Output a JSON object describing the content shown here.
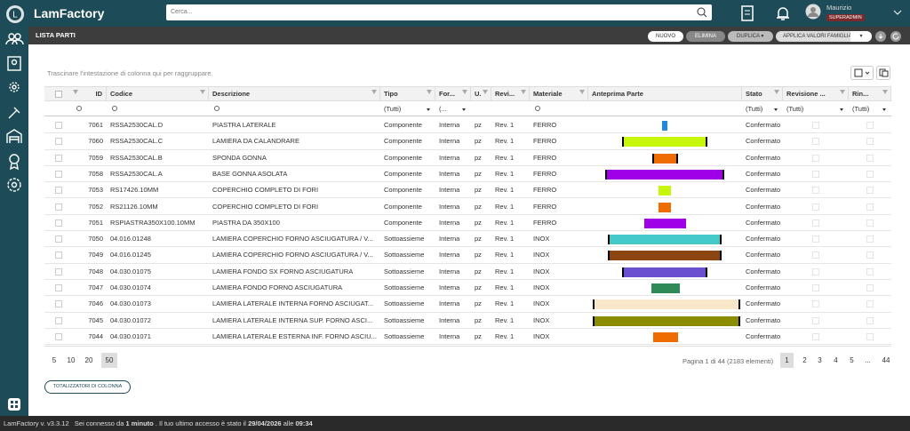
{
  "header": {
    "logo": "LamFactory",
    "search_placeholder": "Cerca...",
    "user_name": "Maurizio",
    "user_role": "SUPERADMIN"
  },
  "toolbar": {
    "title": "LISTA PARTI",
    "buttons": [
      "NUOVO",
      "ELIMINA",
      "DUPLICA",
      "APPLICA VALORI FAMIGLIA"
    ]
  },
  "grid": {
    "group_hint": "Trascinare l'intestazione di colonna qui per raggruppare.",
    "columns": [
      "ID",
      "Codice",
      "Descrizione",
      "Tipo",
      "For...",
      "U.",
      "Revi...",
      "Materiale",
      "Anteprima Parte",
      "Stato",
      "Revisione ...",
      "Rin..."
    ],
    "filters": [
      "(Tutti)",
      "(...",
      "(Tutti)",
      "(Tutti)",
      "(Tutti)"
    ],
    "rows": [
      [
        7061,
        "RSSA2530CAL.D",
        "PIASTRA LATERALE",
        "Componente",
        "Interna",
        "pz",
        "Rev. 1",
        "FERRO",
        "Confermato"
      ],
      [
        7060,
        "RSSA2530CAL.C",
        "LAMIERA DA CALANDRARE",
        "Componente",
        "Interna",
        "pz",
        "Rev. 1",
        "FERRO",
        "Confermato"
      ],
      [
        7059,
        "RSSA2530CAL.B",
        "SPONDA GONNA",
        "Componente",
        "Interna",
        "pz",
        "Rev. 1",
        "FERRO",
        "Confermato"
      ],
      [
        7058,
        "RSSA2530CAL.A",
        "BASE GONNA ASOLATA",
        "Componente",
        "Interna",
        "pz",
        "Rev. 1",
        "FERRO",
        "Confermato"
      ],
      [
        7053,
        "RS17426.10MM",
        "COPERCHIO COMPLETO DI FORI",
        "Componente",
        "Interna",
        "pz",
        "Rev. 1",
        "FERRO",
        "Confermato"
      ],
      [
        7052,
        "RS21126.10MM",
        "COPERCHIO COMPLETO DI FORI",
        "Componente",
        "Interna",
        "pz",
        "Rev. 1",
        "FERRO",
        "Confermato"
      ],
      [
        7051,
        "RSPIASTRA350X100.10MM",
        "PIASTRA DA 350X100",
        "Componente",
        "Interna",
        "pz",
        "Rev. 1",
        "FERRO",
        "Confermato"
      ],
      [
        7050,
        "04.016.01248",
        "LAMIERA COPERCHIO FORNO ASCIUGATURA / V...",
        "Sottoassieme",
        "Interna",
        "pz",
        "Rev. 1",
        "INOX",
        "Confermato"
      ],
      [
        7049,
        "04.016.01245",
        "LAMIERA COPERCHIO FORNO ASCIUGATURA / V...",
        "Sottoassieme",
        "Interna",
        "pz",
        "Rev. 1",
        "INOX",
        "Confermato"
      ],
      [
        7048,
        "04.030.01075",
        "LAMIERA FONDO SX FORNO ASCIUGATURA",
        "Sottoassieme",
        "Interna",
        "pz",
        "Rev. 1",
        "INOX",
        "Confermato"
      ],
      [
        7047,
        "04.030.01074",
        "LAMIERA FONDO FORNO ASCIUGATURA",
        "Sottoassieme",
        "Interna",
        "pz",
        "Rev. 1",
        "INOX",
        "Confermato"
      ],
      [
        7046,
        "04.030.01073",
        "LAMIERA LATERALE INTERNA FORNO ASCIUGAT...",
        "Sottoassieme",
        "Interna",
        "pz",
        "Rev. 1",
        "INOX",
        "Confermato"
      ],
      [
        7045,
        "04.030.01072",
        "LAMIERA LATERALE INTERNA SUP. FORNO ASCI...",
        "Sottoassieme",
        "Interna",
        "pz",
        "Rev. 1",
        "INOX",
        "Confermato"
      ],
      [
        7044,
        "04.030.01071",
        "LAMIERA LATERALE ESTERNA INF. FORNO ASCIU...",
        "Sottoassieme",
        "Interna",
        "pz",
        "Rev. 1",
        "INOX",
        "Confermato"
      ]
    ]
  },
  "pager": {
    "page_sizes": [
      "5",
      "10",
      "20",
      "50"
    ],
    "info": "Pagina 1 di 44 (2183 elementi)",
    "pages": [
      "1",
      "2",
      "3",
      "4",
      "5",
      "...",
      "44"
    ]
  },
  "totals_button": "TOTALIZZATORI DI COLONNA",
  "status": {
    "version": "LamFactory v. v3.3.12",
    "session_prefix": "Sei connesso da",
    "session_duration": "1 minuto",
    "last_access_prefix": "Il tuo ultimo accesso è stato il",
    "last_access_date": "29/04/2026",
    "last_access_mid": "alle",
    "last_access_time": "09:34"
  }
}
